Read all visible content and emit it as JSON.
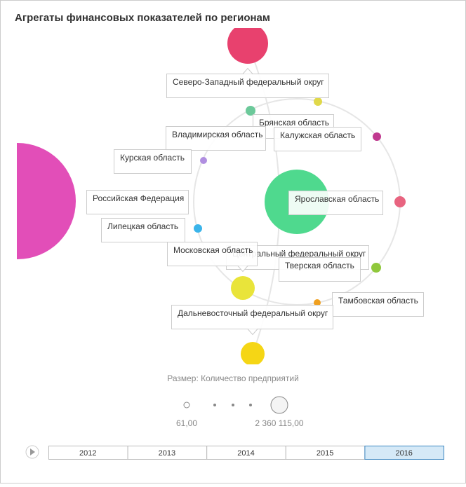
{
  "header": {
    "title": "Агрегаты финансовых показателей по регионам"
  },
  "nodes": [
    {
      "label": "Северо-Западный федеральный округ",
      "color": "#e8416e"
    },
    {
      "label": "Брянская область",
      "color": "#e0d84a"
    },
    {
      "label": "Владимирская область",
      "color": "#6cc99a"
    },
    {
      "label": "Калужская область",
      "color": "#c0398f"
    },
    {
      "label": "Курская область",
      "color": "#b08ee0"
    },
    {
      "label": "Российская Федерация",
      "color": "#e24eb8"
    },
    {
      "label": "Ярославская область",
      "color": "#e86480"
    },
    {
      "label": "Центральный федеральный округ",
      "color": "#4fd98e"
    },
    {
      "label": "Липецкая область",
      "color": "#3ab4ea"
    },
    {
      "label": "Московская область",
      "color": "#e9e43a"
    },
    {
      "label": "Тверская область",
      "color": "#90c83c"
    },
    {
      "label": "Тамбовская область",
      "color": "#f0a020"
    },
    {
      "label": "Дальневосточный федеральный округ",
      "color": "#f5d615"
    }
  ],
  "size_legend": {
    "title": "Размер: Количество предприятий",
    "min_label": "61,00",
    "max_label": "2 360 115,00"
  },
  "timeline": {
    "years": [
      "2012",
      "2013",
      "2014",
      "2015",
      "2016"
    ],
    "selected": 4
  }
}
